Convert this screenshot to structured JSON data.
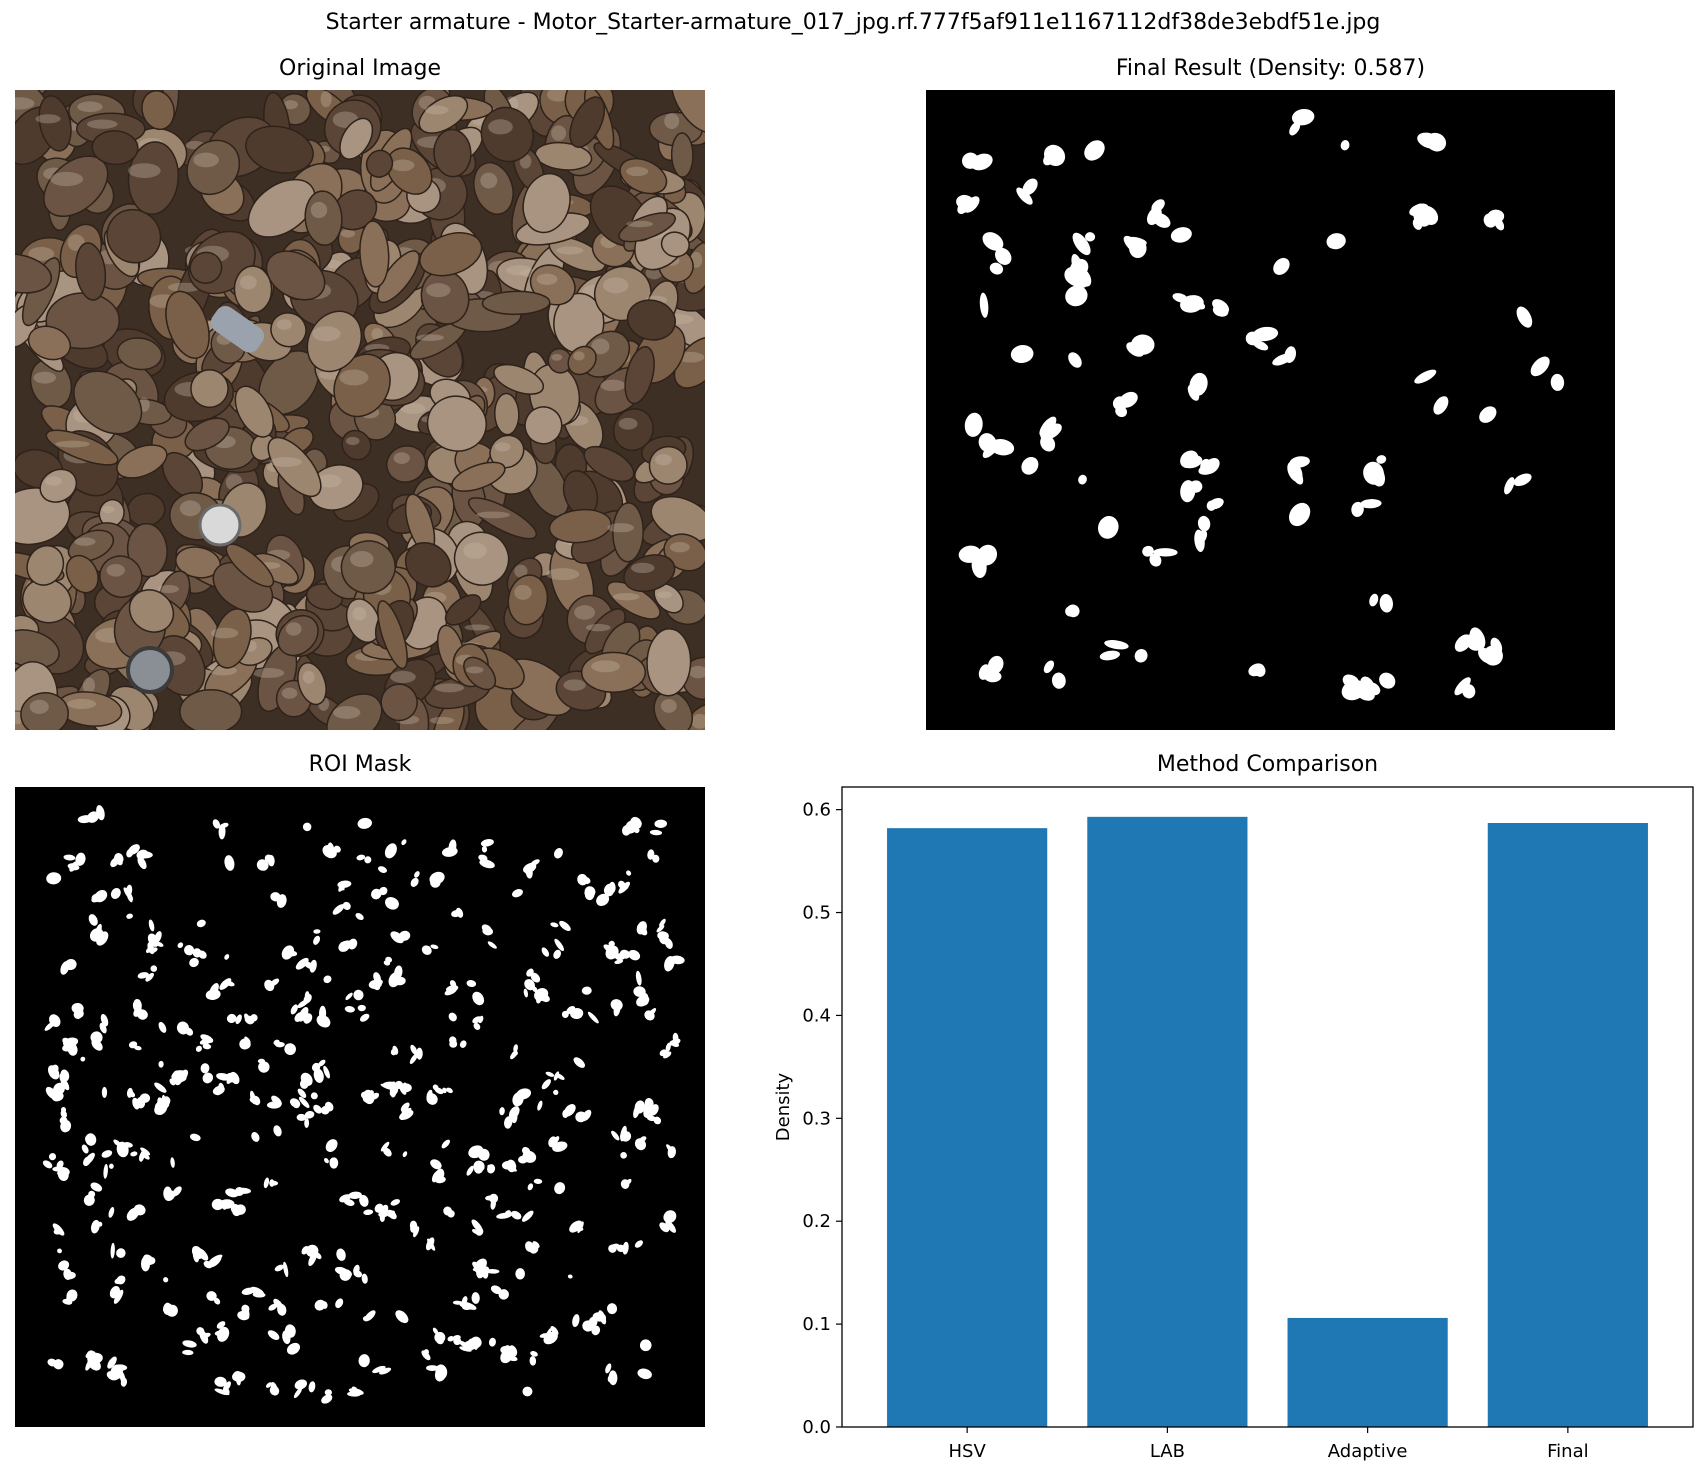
{
  "figure": {
    "suptitle": "Starter armature - Motor_Starter-armature_017_jpg.rf.777f5af911e1167112df38de3ebdf51e.jpg"
  },
  "panels": {
    "original": {
      "title": "Original Image"
    },
    "final": {
      "title": "Final Result (Density: 0.587)"
    },
    "roi": {
      "title": "ROI Mask"
    }
  },
  "colors": {
    "bar": "#1f77b4",
    "mask_background": "#000000",
    "mask_foreground": "#ffffff",
    "scrap_palette": [
      "#6b5443",
      "#8a7058",
      "#5a4536",
      "#9c8670",
      "#7a6048",
      "#4e3b2e",
      "#a89480",
      "#6f5a48"
    ]
  },
  "chart_data": {
    "type": "bar",
    "title": "Method Comparison",
    "xlabel": "",
    "ylabel": "Density",
    "categories": [
      "HSV",
      "LAB",
      "Adaptive",
      "Final"
    ],
    "values": [
      0.582,
      0.593,
      0.106,
      0.587
    ],
    "ylim": [
      0,
      0.622
    ],
    "yticks": [
      "0.0",
      "0.1",
      "0.2",
      "0.3",
      "0.4",
      "0.5",
      "0.6"
    ],
    "grid": false,
    "legend": "none"
  }
}
